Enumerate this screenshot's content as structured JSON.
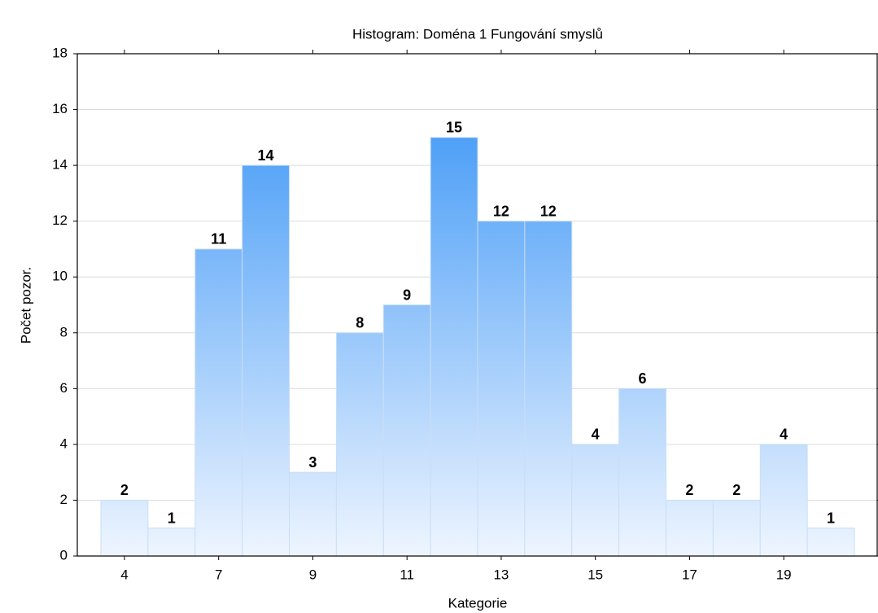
{
  "chart_data": {
    "type": "bar",
    "title": "Histogram: Doména 1 Fungování smyslů",
    "x_label": "Kategorie",
    "y_label": "Počet pozor.",
    "categories": [
      "4",
      null,
      "7",
      null,
      "9",
      null,
      "11",
      null,
      "13",
      null,
      "15",
      null,
      "17",
      null,
      "19",
      null
    ],
    "values": [
      2,
      1,
      11,
      14,
      3,
      8,
      9,
      15,
      12,
      12,
      4,
      6,
      2,
      2,
      4,
      1
    ],
    "color": "#2f8ff5",
    "ylim": [
      0,
      18
    ],
    "yticks": [
      0,
      2,
      4,
      6,
      8,
      10,
      12,
      14,
      16,
      18
    ],
    "grid": true
  }
}
